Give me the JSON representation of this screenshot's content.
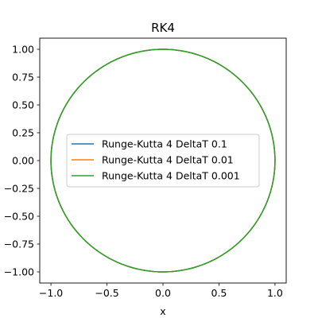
{
  "chart_data": {
    "type": "line",
    "title": "RK4",
    "xlabel": "x",
    "ylabel": "",
    "xlim": [
      -1.1,
      1.1
    ],
    "ylim": [
      -1.1,
      1.1
    ],
    "xticks": [
      -1.0,
      -0.5,
      0.0,
      0.5,
      1.0
    ],
    "xtick_labels": [
      "−1.0",
      "−0.5",
      "0.0",
      "0.5",
      "1.0"
    ],
    "yticks": [
      1.0,
      0.75,
      0.5,
      0.25,
      0.0,
      -0.25,
      -0.5,
      -0.75,
      -1.0
    ],
    "ytick_labels": [
      "1.00",
      "0.75",
      "0.50",
      "0.25",
      "0.00",
      "−0.25",
      "−0.50",
      "−0.75",
      "−1.00"
    ],
    "grid": false,
    "legend_position": "center",
    "series": [
      {
        "name": "Runge-Kutta 4 DeltaT 0.1",
        "color": "#1f77b4",
        "shape": "circle",
        "center": [
          0,
          0
        ],
        "radius": 1.0
      },
      {
        "name": "Runge-Kutta 4 DeltaT 0.01",
        "color": "#ff7f0e",
        "shape": "circle",
        "center": [
          0,
          0
        ],
        "radius": 1.0
      },
      {
        "name": "Runge-Kutta 4 DeltaT 0.001",
        "color": "#2ca02c",
        "shape": "circle",
        "center": [
          0,
          0
        ],
        "radius": 1.0
      }
    ]
  }
}
